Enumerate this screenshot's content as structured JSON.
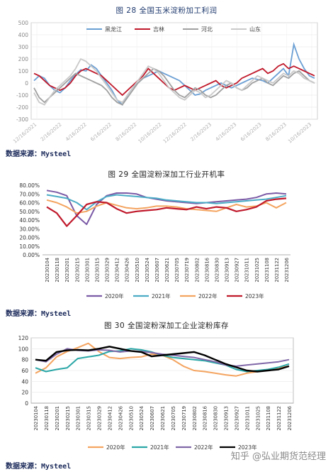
{
  "figure28": {
    "title": "图 28 全国玉米淀粉加工利润",
    "source": "数据来源：Mysteel"
  },
  "figure29": {
    "title": "图 29 全国淀粉深加工行业开机率",
    "source": "数据来源：Mysteel"
  },
  "figure30": {
    "title": "图 30 全国淀粉深加工企业淀粉库存",
    "source": "数据来源：Mysteel"
  },
  "watermark": "知乎 @弘业期货范经理",
  "chart_data": [
    {
      "type": "line",
      "title": "图 28 全国玉米淀粉加工利润",
      "ylim": [
        -300,
        500
      ],
      "yticks": [
        500,
        400,
        300,
        200,
        100,
        0,
        -100,
        -200,
        -300
      ],
      "xlabels": [
        "12/16/2021",
        "2/16/2022",
        "4/16/2022",
        "6/16/2022",
        "8/16/2022",
        "10/16/2022",
        "12/16/2022",
        "2/16/2023",
        "4/16/2023",
        "6/16/2023",
        "8/16/2023",
        "10/16/2023"
      ],
      "legend_position": "top",
      "grid": true,
      "series": [
        {
          "name": "黑龙江",
          "color": "#6b9fd4",
          "values": [
            20,
            60,
            40,
            -20,
            -60,
            -80,
            -40,
            20,
            70,
            110,
            100,
            150,
            120,
            60,
            0,
            -60,
            -140,
            -180,
            -100,
            -40,
            0,
            40,
            60,
            80,
            100,
            80,
            60,
            40,
            20,
            -20,
            -60,
            -100,
            -90,
            -60,
            -40,
            -20,
            0,
            -20,
            -40,
            -20,
            0,
            20,
            40,
            30,
            20,
            0,
            40,
            80,
            120,
            60,
            320,
            200,
            120,
            60,
            40
          ]
        },
        {
          "name": "吉林",
          "color": "#c0192b",
          "values": [
            80,
            60,
            20,
            -20,
            -40,
            -60,
            -40,
            0,
            60,
            100,
            120,
            100,
            80,
            60,
            20,
            -20,
            -60,
            -100,
            -60,
            -20,
            20,
            60,
            120,
            80,
            40,
            0,
            -40,
            -60,
            -40,
            -20,
            -40,
            -60,
            -40,
            -20,
            0,
            20,
            -20,
            -40,
            -20,
            0,
            40,
            60,
            80,
            100,
            120,
            80,
            100,
            140,
            160,
            120,
            140,
            120,
            100,
            80,
            60
          ]
        },
        {
          "name": "河北",
          "color": "#a0a0a0",
          "values": [
            -40,
            -120,
            -160,
            -120,
            -80,
            -40,
            0,
            40,
            80,
            60,
            40,
            20,
            0,
            -20,
            -60,
            -120,
            -160,
            -180,
            -120,
            -60,
            0,
            40,
            80,
            120,
            100,
            60,
            0,
            -60,
            -100,
            -120,
            -80,
            -40,
            -60,
            -100,
            -120,
            -100,
            -60,
            -20,
            0,
            -40,
            -60,
            -40,
            0,
            20,
            40,
            0,
            -20,
            20,
            60,
            40,
            80,
            100,
            60,
            20,
            0
          ]
        },
        {
          "name": "山东",
          "color": "#c9c9c9",
          "values": [
            -80,
            -160,
            -180,
            -120,
            -60,
            -20,
            20,
            60,
            120,
            200,
            180,
            140,
            100,
            40,
            -20,
            -80,
            -140,
            -160,
            -100,
            -40,
            20,
            80,
            140,
            120,
            80,
            20,
            -40,
            -80,
            -120,
            -140,
            -100,
            -60,
            -80,
            -120,
            -100,
            -60,
            -20,
            20,
            0,
            -40,
            -60,
            -20,
            20,
            60,
            40,
            20,
            0,
            40,
            80,
            60,
            100,
            80,
            40,
            20,
            0
          ]
        }
      ]
    },
    {
      "type": "line",
      "title": "图 29 全国淀粉深加工行业开机率",
      "ylim": [
        0,
        80
      ],
      "yticks": [
        "80.00%",
        "70.00%",
        "60.00%",
        "50.00%",
        "40.00%",
        "30.00%",
        "20.00%",
        "10.00%",
        "0.00%"
      ],
      "categories": [
        "20230104",
        "20230118",
        "20230201",
        "20230215",
        "20230301",
        "20230315",
        "20230329",
        "20230412",
        "20230426",
        "20230510",
        "20230524",
        "20230607",
        "20230621",
        "20230705",
        "20230719",
        "20230802",
        "20230816",
        "20230830",
        "20230913",
        "20230927",
        "20231011",
        "20231025",
        "20231108",
        "20231122",
        "20231206"
      ],
      "legend_position": "bottom",
      "series": [
        {
          "name": "2020年",
          "color": "#7b5aa6",
          "values": [
            74,
            72,
            68,
            45,
            35,
            58,
            68,
            71,
            71,
            70,
            66,
            64,
            62,
            61,
            60,
            59,
            60,
            61,
            62,
            63,
            64,
            66,
            70,
            71,
            70
          ]
        },
        {
          "name": "2021年",
          "color": "#4bacc6",
          "values": [
            69,
            67,
            65,
            60,
            52,
            61,
            67,
            69,
            68,
            67,
            66,
            65,
            63,
            62,
            61,
            60,
            60,
            59,
            60,
            61,
            62,
            63,
            64,
            66,
            68
          ]
        },
        {
          "name": "2022年",
          "color": "#f4a460",
          "values": [
            63,
            60,
            55,
            48,
            50,
            56,
            60,
            57,
            54,
            53,
            54,
            56,
            56,
            55,
            53,
            52,
            51,
            50,
            54,
            58,
            55,
            56,
            60,
            54,
            60
          ]
        },
        {
          "name": "2023年",
          "color": "#c0192b",
          "values": [
            55,
            48,
            33,
            45,
            58,
            61,
            60,
            53,
            48,
            50,
            51,
            52,
            54,
            53,
            52,
            55,
            53,
            55,
            54,
            50,
            52,
            55,
            62,
            64,
            65
          ]
        }
      ]
    },
    {
      "type": "line",
      "title": "图 30 全国淀粉深加工企业淀粉库存",
      "ylim": [
        0,
        120
      ],
      "yticks": [
        120,
        100,
        80,
        60,
        40,
        20,
        0
      ],
      "categories": [
        "20230104",
        "20230118",
        "20230201",
        "20230215",
        "20230301",
        "20230315",
        "20230329",
        "20230412",
        "20230426",
        "20230510",
        "20230524",
        "20230607",
        "20230621",
        "20230705",
        "20230719",
        "20230802",
        "20230816",
        "20230830",
        "20230913",
        "20230927",
        "20231011",
        "20231025",
        "20231108",
        "20231122",
        "20231206"
      ],
      "legend_position": "bottom",
      "series": [
        {
          "name": "2020年",
          "color": "#f4a460",
          "values": [
            55,
            65,
            85,
            95,
            102,
            110,
            95,
            84,
            82,
            84,
            85,
            90,
            88,
            80,
            68,
            60,
            58,
            55,
            52,
            50,
            55,
            58,
            62,
            65,
            68
          ]
        },
        {
          "name": "2021年",
          "color": "#2aa6a6",
          "values": [
            65,
            58,
            62,
            65,
            82,
            85,
            88,
            95,
            96,
            100,
            98,
            94,
            88,
            84,
            82,
            80,
            78,
            74,
            70,
            62,
            58,
            60,
            62,
            66,
            72
          ]
        },
        {
          "name": "2022年",
          "color": "#8068a8",
          "values": [
            80,
            76,
            90,
            100,
            97,
            96,
            98,
            97,
            94,
            96,
            95,
            93,
            90,
            88,
            86,
            84,
            80,
            76,
            70,
            68,
            70,
            72,
            74,
            76,
            80
          ]
        },
        {
          "name": "2023年",
          "color": "#000000",
          "values": [
            80,
            78,
            94,
            97,
            98,
            97,
            100,
            104,
            100,
            96,
            94,
            86,
            88,
            90,
            92,
            94,
            88,
            80,
            72,
            66,
            60,
            58,
            60,
            62,
            68
          ]
        }
      ]
    }
  ]
}
